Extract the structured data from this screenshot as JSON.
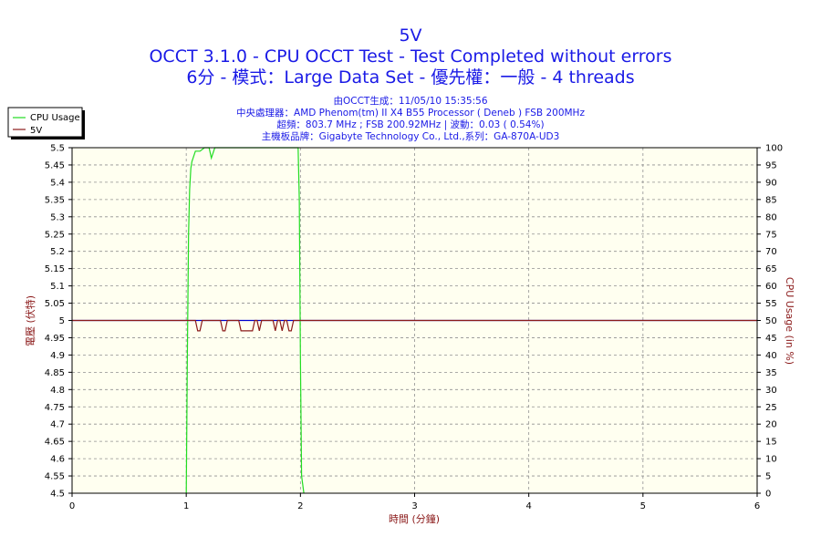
{
  "header": {
    "title": "5V",
    "line1": "OCCT 3.1.0 - CPU OCCT Test - Test Completed without errors",
    "line2": "6分 - 模式：Large Data Set - 優先權：一般 - 4 threads",
    "info1": "由OCCT生成：11/05/10 15:35:56",
    "info2": "中央處理器：AMD Phenom(tm) II X4 B55 Processor ( Deneb ) FSB 200MHz",
    "info3": "超頻：803.7 MHz ; FSB 200.92MHz | 波動：0.03 ( 0.54%)",
    "info4": "主機板品牌：Gigabyte Technology Co., Ltd.,系列：GA-870A-UD3"
  },
  "colors": {
    "plot_bg": "#fffff0",
    "grid": "#909090",
    "cpu_line": "#22dd22",
    "voltage_line": "#8b1a1a",
    "ref_line": "#0000cc",
    "title": "#1a1ae6",
    "axis_label": "#8b1a1a"
  },
  "chart_data": {
    "type": "line",
    "xlabel": "時間 (分鐘)",
    "ylabel_left": "電壓 (伏特)",
    "ylabel_right": "CPU Usage (in %)",
    "xlim": [
      0,
      6
    ],
    "ylim_left": [
      4.5,
      5.5
    ],
    "ylim_right": [
      0,
      100
    ],
    "x_ticks": [
      "0",
      "1",
      "2",
      "3",
      "4",
      "5",
      "6"
    ],
    "y_left_ticks": [
      "4.5",
      "4.55",
      "4.6",
      "4.65",
      "4.7",
      "4.75",
      "4.8",
      "4.85",
      "4.9",
      "4.95",
      "5",
      "5.05",
      "5.1",
      "5.15",
      "5.2",
      "5.25",
      "5.3",
      "5.35",
      "5.4",
      "5.45",
      "5.5"
    ],
    "y_right_ticks": [
      "0",
      "5",
      "10",
      "15",
      "20",
      "25",
      "30",
      "35",
      "40",
      "45",
      "50",
      "55",
      "60",
      "65",
      "70",
      "75",
      "80",
      "85",
      "90",
      "95",
      "100"
    ],
    "grid": true,
    "legend": {
      "placement": "top-left",
      "entries": [
        {
          "label": "CPU Usage",
          "color": "#22dd22"
        },
        {
          "label": "5V",
          "color": "#8b1a1a"
        }
      ]
    },
    "reference_line": {
      "axis": "left",
      "value": 5.0
    },
    "series": [
      {
        "name": "CPU Usage",
        "axis": "right",
        "x": [
          1.0,
          1.01,
          1.02,
          1.03,
          1.04,
          1.05,
          1.08,
          1.12,
          1.16,
          1.2,
          1.22,
          1.25,
          1.3,
          1.4,
          1.5,
          1.6,
          1.7,
          1.8,
          1.9,
          1.98,
          1.99,
          2.0,
          2.01,
          2.03
        ],
        "y": [
          0,
          40,
          75,
          88,
          94,
          96,
          99,
          99,
          100,
          100,
          97,
          100,
          100,
          100,
          100,
          100,
          100,
          100,
          100,
          100,
          85,
          40,
          5,
          0
        ]
      },
      {
        "name": "5V",
        "axis": "left",
        "x": [
          0.0,
          1.0,
          1.08,
          1.1,
          1.12,
          1.14,
          1.3,
          1.32,
          1.34,
          1.36,
          1.46,
          1.48,
          1.58,
          1.6,
          1.62,
          1.64,
          1.66,
          1.76,
          1.78,
          1.8,
          1.82,
          1.84,
          1.86,
          1.88,
          1.9,
          1.92,
          1.94,
          2.0,
          6.0
        ],
        "y": [
          5.0,
          5.0,
          5.0,
          4.97,
          4.97,
          5.0,
          5.0,
          4.97,
          4.97,
          5.0,
          5.0,
          4.97,
          4.97,
          5.0,
          5.0,
          4.97,
          5.0,
          5.0,
          4.97,
          5.0,
          5.0,
          4.97,
          5.0,
          5.0,
          4.97,
          4.97,
          5.0,
          5.0,
          5.0
        ]
      }
    ]
  }
}
